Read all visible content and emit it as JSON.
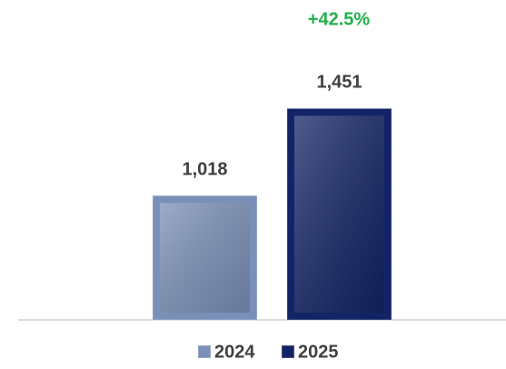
{
  "chart_data": {
    "type": "bar",
    "annotation": "+42.5%",
    "categories": [
      null
    ],
    "series": [
      {
        "name": "2024",
        "color": "#7b90b8",
        "values": [
          1018
        ],
        "value_labels": [
          "1,018"
        ]
      },
      {
        "name": "2025",
        "color": "#132466",
        "values": [
          1451
        ],
        "value_labels": [
          "1,451"
        ]
      }
    ],
    "ylim": [
      400,
      1900
    ]
  }
}
